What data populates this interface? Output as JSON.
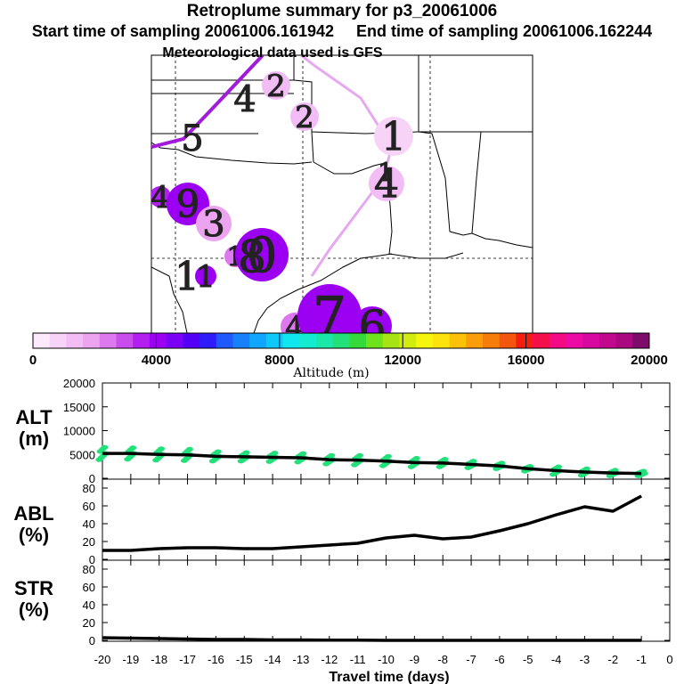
{
  "header": {
    "title": "Retroplume summary for p3_20061006",
    "start_label": "Start time of sampling 20061006.161942",
    "end_label": "End time of sampling 20061006.162244",
    "met_label": "Meteorological data used is GFS"
  },
  "colors": {
    "path_light": "#e6a8f0",
    "path_dark": "#a21bd8",
    "alt_scatter": "#22e07a",
    "colorbar": [
      "#fce9fc",
      "#f8d3f8",
      "#f2bcf4",
      "#eca4f0",
      "#dd78ee",
      "#c94ded",
      "#b21ff0",
      "#9c00f3",
      "#7a00f6",
      "#5400f6",
      "#2e1cfb",
      "#1f58fb",
      "#1780fb",
      "#10a6fb",
      "#0dc8f8",
      "#0fe6f0",
      "#14ecd0",
      "#1ae8a8",
      "#22e07a",
      "#34da3a",
      "#6ee21a",
      "#a6e415",
      "#d2ec10",
      "#f5f50d",
      "#fde20b",
      "#fbc10a",
      "#fa9d0a",
      "#f77d0a",
      "#f5560d",
      "#f51d10",
      "#f50f4a",
      "#f50a86",
      "#ee0aa5",
      "#d8099f",
      "#c2088f",
      "#a9087f",
      "#7e0a6a"
    ]
  },
  "map": {
    "markers": [
      {
        "label": "4",
        "alt_m": 2000
      },
      {
        "label": "2",
        "alt_m": 1600
      },
      {
        "label": "5",
        "alt_m": 600
      },
      {
        "label": "2",
        "alt_m": 1600
      },
      {
        "label": "1",
        "alt_m": 600
      },
      {
        "label": "4",
        "alt_m": 1200
      },
      {
        "label": "1",
        "alt_m": 1000
      },
      {
        "label": "4",
        "alt_m": 3600
      },
      {
        "label": "9",
        "alt_m": 3800
      },
      {
        "label": "3",
        "alt_m": 2000
      },
      {
        "label": "1",
        "alt_m": 2400
      },
      {
        "label": "0",
        "alt_m": 3800
      },
      {
        "label": "8",
        "alt_m": 3700
      },
      {
        "label": "1",
        "alt_m": 600
      },
      {
        "label": "1",
        "alt_m": 3800
      },
      {
        "label": "4",
        "alt_m": 2200
      },
      {
        "label": "7",
        "alt_m": 3800
      },
      {
        "label": "6",
        "alt_m": 3800
      }
    ]
  },
  "colorbar": {
    "ticks": [
      "0",
      "4000",
      "8000",
      "12000",
      "16000",
      "20000"
    ],
    "label": "Altitude (m)"
  },
  "panels": {
    "alt": {
      "label_line1": "ALT",
      "label_line2": "(m)",
      "yticks": [
        "20000",
        "15000",
        "10000",
        "5000",
        "0"
      ]
    },
    "abl": {
      "label_line1": "ABL",
      "label_line2": "(%)",
      "yticks": [
        "80",
        "60",
        "40",
        "20",
        "0"
      ]
    },
    "str": {
      "label_line1": "STR",
      "label_line2": "(%)",
      "yticks": [
        "80",
        "60",
        "40",
        "20",
        "0"
      ]
    }
  },
  "chart_data": [
    {
      "type": "line",
      "title": "ALT (m)",
      "xlabel": "Travel time (days)",
      "ylabel": "ALT (m)",
      "x": [
        -20,
        -19,
        -18,
        -17,
        -16,
        -15,
        -14,
        -13,
        -12,
        -11,
        -10,
        -9,
        -8,
        -7,
        -6,
        -5,
        -4,
        -3,
        -2,
        -1
      ],
      "values": [
        5200,
        5200,
        5000,
        4900,
        4600,
        4500,
        4400,
        4300,
        3900,
        3800,
        3600,
        3300,
        3200,
        2900,
        2600,
        2000,
        1600,
        1300,
        1100,
        1000
      ],
      "scatter_spread_m": [
        1300,
        1200,
        1200,
        1200,
        1000,
        900,
        900,
        900,
        900,
        1000,
        1000,
        900,
        800,
        700,
        600,
        500,
        800,
        700,
        600,
        500
      ],
      "ylim": [
        0,
        20000
      ],
      "xlim": [
        -20,
        0
      ]
    },
    {
      "type": "line",
      "title": "ABL (%)",
      "xlabel": "Travel time (days)",
      "ylabel": "ABL (%)",
      "x": [
        -20,
        -19,
        -18,
        -17,
        -16,
        -15,
        -14,
        -13,
        -12,
        -11,
        -10,
        -9,
        -8,
        -7,
        -6,
        -5,
        -4,
        -3,
        -2,
        -1
      ],
      "values": [
        10,
        10,
        12,
        13,
        13,
        12,
        12,
        14,
        16,
        18,
        24,
        27,
        23,
        25,
        32,
        40,
        50,
        59,
        54,
        71
      ],
      "ylim": [
        0,
        90
      ],
      "xlim": [
        -20,
        0
      ]
    },
    {
      "type": "line",
      "title": "STR (%)",
      "xlabel": "Travel time (days)",
      "ylabel": "STR (%)",
      "x": [
        -20,
        -19,
        -18,
        -17,
        -16,
        -15,
        -14,
        -13,
        -12,
        -11,
        -10,
        -9,
        -8,
        -7,
        -6,
        -5,
        -4,
        -3,
        -2,
        -1
      ],
      "values": [
        3,
        2.5,
        2,
        1.5,
        1,
        1,
        0.5,
        0.5,
        0.3,
        0.2,
        0,
        0,
        0,
        0,
        0,
        0,
        0,
        0,
        0,
        0
      ],
      "ylim": [
        0,
        90
      ],
      "xlim": [
        -20,
        0
      ]
    }
  ],
  "x_axis": {
    "ticks": [
      "-20",
      "-19",
      "-18",
      "-17",
      "-16",
      "-15",
      "-14",
      "-13",
      "-12",
      "-11",
      "-10",
      "-9",
      "-8",
      "-7",
      "-6",
      "-5",
      "-4",
      "-3",
      "-2",
      "-1",
      "0"
    ],
    "label": "Travel time (days)"
  }
}
